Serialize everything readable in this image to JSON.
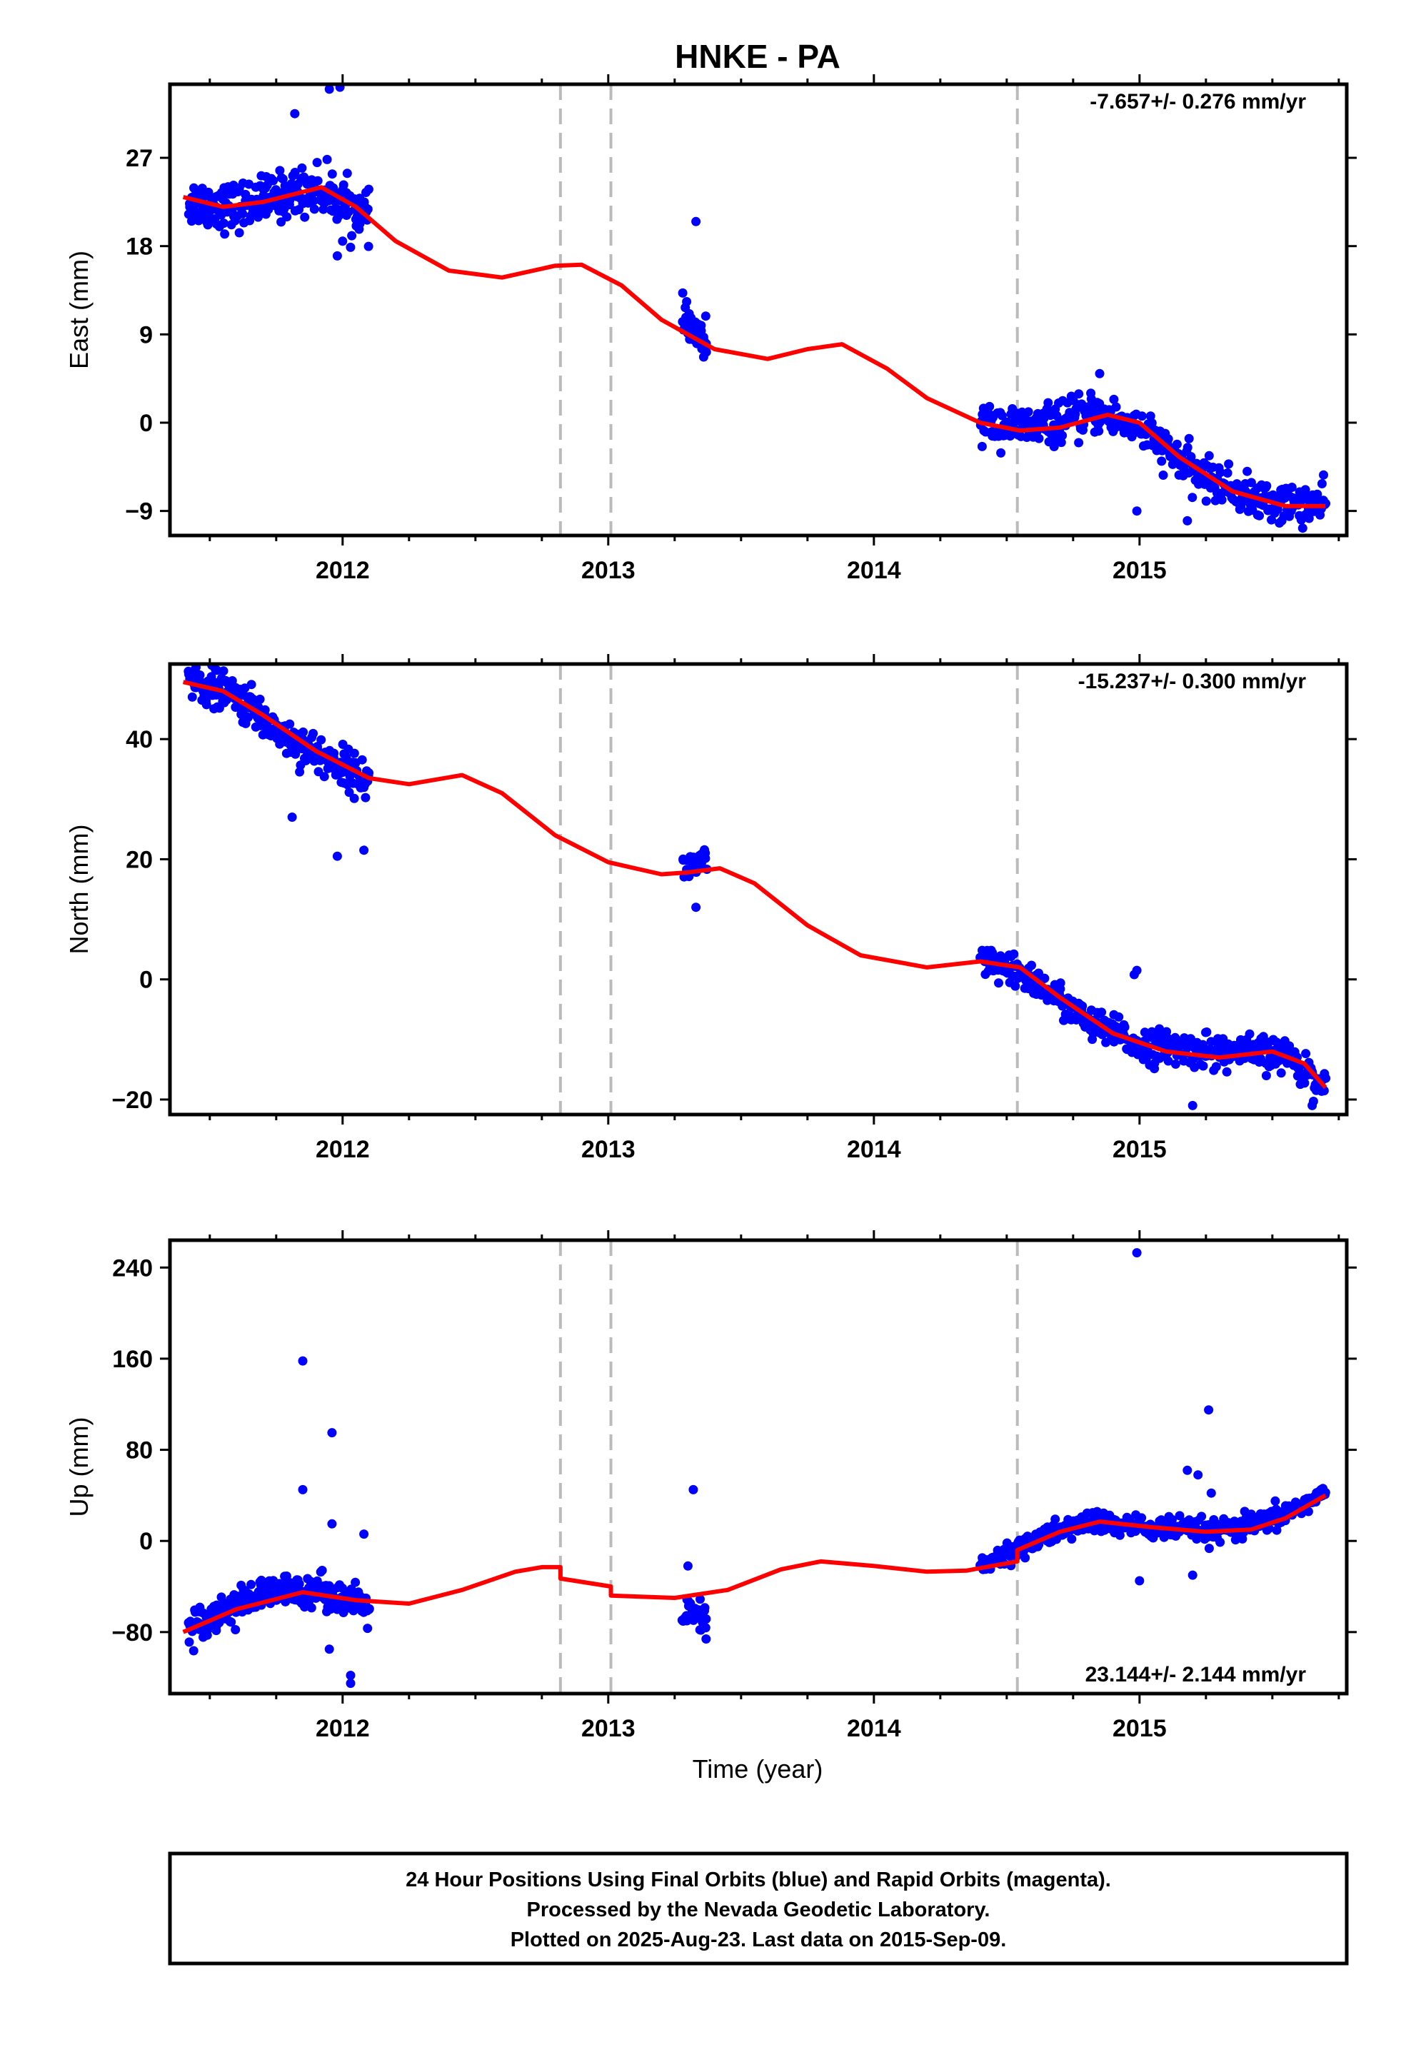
{
  "title": "HNKE - PA",
  "xlabel": "Time (year)",
  "colors": {
    "final_orbits": "#0000ff",
    "model": "#ff0000",
    "step_lines": "#bbbbbb",
    "frame": "#000000"
  },
  "footer": {
    "line1": "24 Hour Positions Using Final Orbits (blue) and Rapid Orbits (magenta).",
    "line2": "Processed by the Nevada Geodetic Laboratory.",
    "line3": "Plotted on 2025-Aug-23. Last data on 2015-Sep-09."
  },
  "chart_data": [
    {
      "type": "scatter",
      "component": "East",
      "ylabel": "East (mm)",
      "rate_text": "-7.657+/- 0.276 mm/yr",
      "xlim": [
        2011.35,
        2015.78
      ],
      "ylim": [
        -11.5,
        34.5
      ],
      "x_ticks": [
        "2012",
        "2013",
        "2014",
        "2015"
      ],
      "y_ticks": [
        "27",
        "18",
        "9",
        "0",
        "−9"
      ],
      "y_tick_values": [
        27,
        18,
        9,
        0,
        -9
      ],
      "step_epochs": [
        2012.82,
        2013.01,
        2014.54
      ],
      "data_segments": [
        {
          "x_start": 2011.42,
          "x_end": 2012.1,
          "trend": [
            [
              2011.42,
              22.5
            ],
            [
              2011.6,
              22.0
            ],
            [
              2011.9,
              24.0
            ],
            [
              2012.1,
              21.0
            ]
          ],
          "scatter": 1.2,
          "n": 260
        },
        {
          "x_start": 2013.28,
          "x_end": 2013.37,
          "trend": [
            [
              2013.28,
              10.5
            ],
            [
              2013.37,
              8.0
            ]
          ],
          "scatter": 1.0,
          "n": 40
        },
        {
          "x_start": 2014.4,
          "x_end": 2015.7,
          "trend": [
            [
              2014.4,
              0.0
            ],
            [
              2014.6,
              -0.5
            ],
            [
              2014.85,
              1.0
            ],
            [
              2015.0,
              -0.5
            ],
            [
              2015.2,
              -5.0
            ],
            [
              2015.45,
              -8.0
            ],
            [
              2015.7,
              -8.5
            ]
          ],
          "scatter": 1.0,
          "n": 420
        }
      ],
      "outliers": [
        [
          2011.82,
          31.5
        ],
        [
          2011.95,
          34.0
        ],
        [
          2011.99,
          34.2
        ],
        [
          2011.98,
          17.0
        ],
        [
          2012.0,
          18.5
        ],
        [
          2013.33,
          20.5
        ],
        [
          2014.85,
          5.0
        ],
        [
          2014.99,
          -9.0
        ],
        [
          2015.18,
          -10.0
        ]
      ],
      "model": [
        [
          2011.4,
          23.0
        ],
        [
          2011.55,
          22.0
        ],
        [
          2011.7,
          22.5
        ],
        [
          2011.92,
          24.0
        ],
        [
          2012.05,
          22.0
        ],
        [
          2012.2,
          18.5
        ],
        [
          2012.4,
          15.5
        ],
        [
          2012.6,
          14.8
        ],
        [
          2012.8,
          16.0
        ],
        [
          2012.9,
          16.1
        ],
        [
          2013.05,
          14.0
        ],
        [
          2013.2,
          10.5
        ],
        [
          2013.4,
          7.5
        ],
        [
          2013.6,
          6.5
        ],
        [
          2013.75,
          7.5
        ],
        [
          2013.88,
          8.0
        ],
        [
          2014.05,
          5.5
        ],
        [
          2014.2,
          2.5
        ],
        [
          2014.4,
          0.0
        ],
        [
          2014.55,
          -0.8
        ],
        [
          2014.7,
          -0.5
        ],
        [
          2014.88,
          0.8
        ],
        [
          2015.0,
          0.0
        ],
        [
          2015.15,
          -3.5
        ],
        [
          2015.35,
          -7.0
        ],
        [
          2015.55,
          -8.5
        ],
        [
          2015.7,
          -8.5
        ]
      ]
    },
    {
      "type": "scatter",
      "component": "North",
      "ylabel": "North (mm)",
      "rate_text": "-15.237+/- 0.300 mm/yr",
      "xlim": [
        2011.35,
        2015.78
      ],
      "ylim": [
        -22.5,
        52.5
      ],
      "x_ticks": [
        "2012",
        "2013",
        "2014",
        "2015"
      ],
      "y_ticks": [
        "40",
        "20",
        "0",
        "−20"
      ],
      "y_tick_values": [
        40,
        20,
        0,
        -20
      ],
      "step_epochs": [
        2012.82,
        2013.01,
        2014.54
      ],
      "data_segments": [
        {
          "x_start": 2011.42,
          "x_end": 2012.1,
          "trend": [
            [
              2011.42,
              50.0
            ],
            [
              2011.6,
              47.0
            ],
            [
              2011.8,
              40.0
            ],
            [
              2012.1,
              33.0
            ]
          ],
          "scatter": 1.6,
          "n": 260
        },
        {
          "x_start": 2013.28,
          "x_end": 2013.37,
          "trend": [
            [
              2013.28,
              18.5
            ],
            [
              2013.37,
              19.5
            ]
          ],
          "scatter": 1.2,
          "n": 40
        },
        {
          "x_start": 2014.4,
          "x_end": 2015.7,
          "trend": [
            [
              2014.4,
              3.0
            ],
            [
              2014.6,
              0.0
            ],
            [
              2014.8,
              -7.0
            ],
            [
              2015.0,
              -11.0
            ],
            [
              2015.3,
              -12.0
            ],
            [
              2015.55,
              -12.5
            ],
            [
              2015.7,
              -18.0
            ]
          ],
          "scatter": 1.4,
          "n": 420
        }
      ],
      "outliers": [
        [
          2011.81,
          27.0
        ],
        [
          2011.98,
          20.5
        ],
        [
          2012.08,
          21.5
        ],
        [
          2013.33,
          12.0
        ],
        [
          2014.99,
          1.5
        ],
        [
          2014.98,
          0.8
        ],
        [
          2015.2,
          -21.0
        ],
        [
          2015.65,
          -21.0
        ]
      ],
      "model": [
        [
          2011.4,
          49.5
        ],
        [
          2011.55,
          48.0
        ],
        [
          2011.7,
          44.0
        ],
        [
          2011.9,
          38.0
        ],
        [
          2012.1,
          33.5
        ],
        [
          2012.25,
          32.5
        ],
        [
          2012.45,
          34.0
        ],
        [
          2012.6,
          31.0
        ],
        [
          2012.8,
          24.0
        ],
        [
          2013.0,
          19.5
        ],
        [
          2013.2,
          17.5
        ],
        [
          2013.3,
          17.8
        ],
        [
          2013.42,
          18.5
        ],
        [
          2013.55,
          16.0
        ],
        [
          2013.75,
          9.0
        ],
        [
          2013.95,
          4.0
        ],
        [
          2014.2,
          2.0
        ],
        [
          2014.4,
          3.0
        ],
        [
          2014.55,
          2.0
        ],
        [
          2014.7,
          -3.0
        ],
        [
          2014.9,
          -9.0
        ],
        [
          2015.1,
          -12.0
        ],
        [
          2015.3,
          -13.0
        ],
        [
          2015.5,
          -12.0
        ],
        [
          2015.62,
          -14.0
        ],
        [
          2015.7,
          -18.0
        ]
      ]
    },
    {
      "type": "scatter",
      "component": "Up",
      "ylabel": "Up (mm)",
      "rate_text": "23.144+/- 2.144 mm/yr",
      "xlim": [
        2011.35,
        2015.78
      ],
      "ylim": [
        -134,
        264
      ],
      "x_ticks": [
        "2012",
        "2013",
        "2014",
        "2015"
      ],
      "y_ticks": [
        "240",
        "160",
        "80",
        "0",
        "−80"
      ],
      "y_tick_values": [
        240,
        160,
        80,
        0,
        -80
      ],
      "step_epochs": [
        2012.82,
        2013.01,
        2014.54
      ],
      "data_segments": [
        {
          "x_start": 2011.42,
          "x_end": 2012.1,
          "trend": [
            [
              2011.42,
              -75.0
            ],
            [
              2011.7,
              -47.0
            ],
            [
              2011.9,
              -42.0
            ],
            [
              2012.1,
              -60.0
            ]
          ],
          "scatter": 7,
          "n": 260
        },
        {
          "x_start": 2013.28,
          "x_end": 2013.37,
          "trend": [
            [
              2013.28,
              -65.0
            ],
            [
              2013.37,
              -70.0
            ]
          ],
          "scatter": 8,
          "n": 40
        },
        {
          "x_start": 2014.4,
          "x_end": 2015.7,
          "trend": [
            [
              2014.4,
              -25.0
            ],
            [
              2014.55,
              -5.0
            ],
            [
              2014.8,
              17.0
            ],
            [
              2015.0,
              12.0
            ],
            [
              2015.3,
              8.0
            ],
            [
              2015.5,
              18.0
            ],
            [
              2015.7,
              42.0
            ]
          ],
          "scatter": 5,
          "n": 420
        }
      ],
      "outliers": [
        [
          2011.85,
          158.0
        ],
        [
          2011.96,
          95.0
        ],
        [
          2011.85,
          45.0
        ],
        [
          2011.96,
          15.0
        ],
        [
          2012.08,
          6.0
        ],
        [
          2012.03,
          -125.0
        ],
        [
          2012.03,
          -118.0
        ],
        [
          2011.95,
          -95.0
        ],
        [
          2013.32,
          45.0
        ],
        [
          2013.3,
          -22.0
        ],
        [
          2014.99,
          253.0
        ],
        [
          2015.26,
          115.0
        ],
        [
          2015.18,
          62.0
        ],
        [
          2015.22,
          58.0
        ],
        [
          2015.27,
          42.0
        ],
        [
          2015.2,
          -30.0
        ],
        [
          2015.0,
          -35.0
        ]
      ],
      "model": [
        [
          2011.4,
          -80.0
        ],
        [
          2011.6,
          -60.0
        ],
        [
          2011.85,
          -45.0
        ],
        [
          2012.05,
          -52.0
        ],
        [
          2012.25,
          -55.0
        ],
        [
          2012.45,
          -43.0
        ],
        [
          2012.65,
          -27.0
        ],
        [
          2012.75,
          -23.0
        ],
        [
          2012.82,
          -23.0
        ],
        [
          2012.82,
          -33.0
        ],
        [
          2013.01,
          -40.0
        ],
        [
          2013.01,
          -48.0
        ],
        [
          2013.25,
          -50.0
        ],
        [
          2013.45,
          -43.0
        ],
        [
          2013.65,
          -25.0
        ],
        [
          2013.8,
          -18.0
        ],
        [
          2014.0,
          -22.0
        ],
        [
          2014.2,
          -27.0
        ],
        [
          2014.35,
          -26.0
        ],
        [
          2014.54,
          -18.0
        ],
        [
          2014.54,
          -8.0
        ],
        [
          2014.7,
          8.0
        ],
        [
          2014.85,
          17.0
        ],
        [
          2015.05,
          12.0
        ],
        [
          2015.25,
          8.0
        ],
        [
          2015.42,
          10.0
        ],
        [
          2015.55,
          20.0
        ],
        [
          2015.7,
          40.0
        ]
      ]
    }
  ]
}
